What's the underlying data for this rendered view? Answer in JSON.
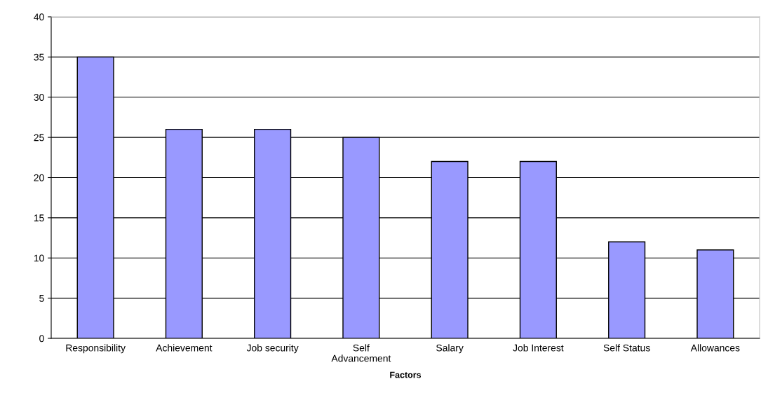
{
  "chart_data": {
    "type": "bar",
    "xlabel": "Factors",
    "categories": [
      "Responsibility",
      "Achievement",
      "Job security",
      "Self\nAdvancement",
      "Salary",
      "Job Interest",
      "Self Status",
      "Allowances"
    ],
    "values": [
      35,
      26,
      26,
      25,
      22,
      22,
      12,
      11
    ],
    "color": "#9999ff",
    "ylim": [
      0,
      40
    ],
    "yticks": [
      0,
      5,
      10,
      15,
      20,
      25,
      30,
      35,
      40
    ],
    "grid": "y",
    "legend": false
  }
}
